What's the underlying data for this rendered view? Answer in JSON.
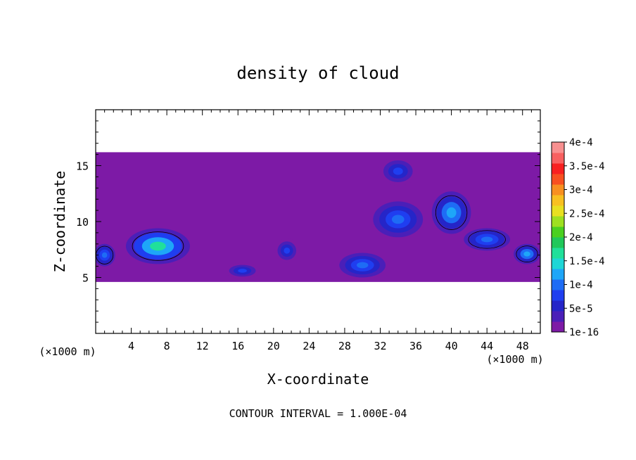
{
  "chart_data": {
    "type": "heatmap",
    "title": "density of cloud",
    "xlabel": "X-coordinate",
    "ylabel": "Z-coordinate",
    "x_unit_left": "(×1000 m)",
    "x_unit_right": "(×1000 m)",
    "footer": "CONTOUR INTERVAL = 1.000E-04",
    "xlim": [
      0,
      50
    ],
    "ylim": [
      0,
      20
    ],
    "x_ticks": [
      4,
      8,
      12,
      16,
      20,
      24,
      28,
      32,
      36,
      40,
      44,
      48
    ],
    "y_ticks": [
      5,
      10,
      15
    ],
    "colorbar": {
      "labels": [
        "1e-16",
        "5e-5",
        "1e-4",
        "1.5e-4",
        "2e-4",
        "2.5e-4",
        "3e-4",
        "3.5e-4",
        "4e-4"
      ],
      "levels": [
        1e-16,
        5e-05,
        0.0001,
        0.00015,
        0.0002,
        0.00025,
        0.0003,
        0.00035,
        0.0004
      ],
      "colors": [
        "#7d1aa6",
        "#4a1fb8",
        "#2525c8",
        "#1f3ef0",
        "#1e6cf5",
        "#1ea6f8",
        "#1ed6d6",
        "#20e09a",
        "#20c85a",
        "#4ad020",
        "#9ee020",
        "#e8e020",
        "#f8c020",
        "#f89020",
        "#f85020",
        "#f82020",
        "#f86060",
        "#f89090"
      ]
    },
    "cloud_regions": [
      {
        "kind": "layer",
        "x": [
          0,
          50
        ],
        "z": [
          4.6,
          16.2
        ],
        "value": 2e-05
      },
      {
        "kind": "blob",
        "cx": 7,
        "cz": 7.8,
        "rx": 3.6,
        "rz": 1.6,
        "value": 0.00016
      },
      {
        "kind": "blob",
        "cx": 1,
        "cz": 7,
        "rx": 1.2,
        "rz": 1.0,
        "value": 0.00011
      },
      {
        "kind": "blob",
        "cx": 16.5,
        "cz": 5.6,
        "rx": 2.0,
        "rz": 0.7,
        "value": 8e-05
      },
      {
        "kind": "blob",
        "cx": 21.5,
        "cz": 7.4,
        "rx": 1.4,
        "rz": 1.1,
        "value": 7e-05
      },
      {
        "kind": "blob",
        "cx": 30,
        "cz": 6.1,
        "rx": 2.6,
        "rz": 1.1,
        "value": 9e-05
      },
      {
        "kind": "blob",
        "cx": 34,
        "cz": 10.2,
        "rx": 2.8,
        "rz": 1.6,
        "value": 9e-05
      },
      {
        "kind": "blob",
        "cx": 34,
        "cz": 14.5,
        "rx": 2.2,
        "rz": 1.3,
        "value": 7e-05
      },
      {
        "kind": "blob",
        "cx": 40,
        "cz": 10.8,
        "rx": 2.2,
        "rz": 1.9,
        "value": 0.00012
      },
      {
        "kind": "blob",
        "cx": 44,
        "cz": 8.4,
        "rx": 2.6,
        "rz": 1.0,
        "value": 0.00011
      },
      {
        "kind": "blob",
        "cx": 48.5,
        "cz": 7.1,
        "rx": 1.5,
        "rz": 0.9,
        "value": 0.00012
      }
    ]
  }
}
